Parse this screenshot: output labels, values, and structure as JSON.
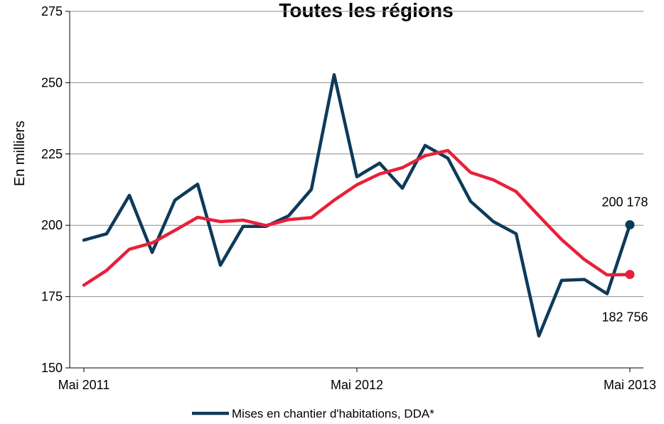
{
  "chart_data": {
    "type": "line",
    "title": "Toutes les régions",
    "xlabel": "",
    "ylabel": "En milliers",
    "ylim": [
      150,
      275
    ],
    "yticks": [
      150,
      175,
      200,
      225,
      250,
      275
    ],
    "grid": true,
    "legend_position": "bottom",
    "x_tick_labels": [
      {
        "index": 0,
        "label": "Mai 2011"
      },
      {
        "index": 12,
        "label": "Mai 2012"
      },
      {
        "index": 24,
        "label": "Mai 2013"
      }
    ],
    "series": [
      {
        "name": "Mises en chantier d'habitations, DDA*",
        "color": "#0d3a5a",
        "values": [
          194.8,
          197.0,
          210.5,
          190.5,
          208.8,
          214.4,
          186.0,
          199.6,
          199.6,
          203.3,
          212.6,
          252.8,
          217.0,
          221.8,
          213.0,
          228.0,
          223.5,
          208.4,
          201.3,
          197.0,
          161.2,
          180.7,
          181.0,
          176.0,
          200.178
        ]
      },
      {
        "name": "",
        "color": "#e8203a",
        "values": [
          179.0,
          184.2,
          191.6,
          193.8,
          198.2,
          202.8,
          201.3,
          201.8,
          199.9,
          202.0,
          202.7,
          208.8,
          214.2,
          218.0,
          220.2,
          224.4,
          226.2,
          218.5,
          215.9,
          211.8,
          203.3,
          195.0,
          188.0,
          182.6,
          182.756
        ]
      }
    ],
    "data_labels": [
      {
        "series": 0,
        "index": 24,
        "text": "200 178"
      },
      {
        "series": 1,
        "index": 24,
        "text": "182 756"
      }
    ]
  }
}
